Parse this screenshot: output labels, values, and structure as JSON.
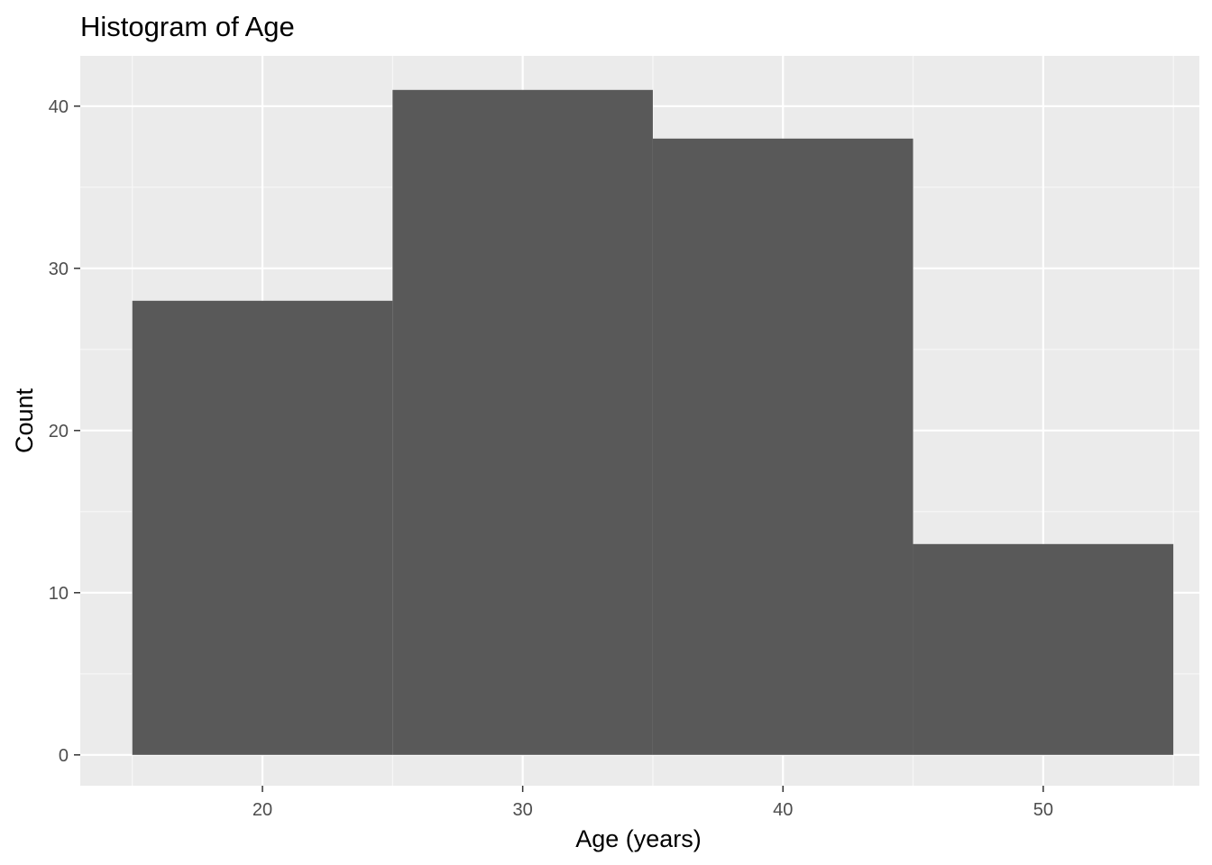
{
  "chart_data": {
    "type": "bar",
    "subtype": "histogram",
    "title": "Histogram of Age",
    "xlabel": "Age (years)",
    "ylabel": "Count",
    "bins": [
      {
        "start": 15,
        "end": 25,
        "count": 28
      },
      {
        "start": 25,
        "end": 35,
        "count": 41
      },
      {
        "start": 35,
        "end": 45,
        "count": 38
      },
      {
        "start": 45,
        "end": 55,
        "count": 13
      }
    ],
    "xlim": [
      13,
      56
    ],
    "ylim": [
      -1.9,
      43.1
    ],
    "x_ticks": [
      20,
      30,
      40,
      50
    ],
    "x_ticks_labels": [
      "20",
      "30",
      "40",
      "50"
    ],
    "y_ticks": [
      0,
      10,
      20,
      30,
      40
    ],
    "y_ticks_labels": [
      "0",
      "10",
      "20",
      "30",
      "40"
    ],
    "grid": true,
    "legend": "none",
    "colors": {
      "bar": "#595959",
      "panel_background": "#ebebeb",
      "grid_major": "#ffffff",
      "grid_minor": "#f7f7f7",
      "tick_text": "#4d4d4d",
      "tick_mark": "#333333"
    }
  }
}
